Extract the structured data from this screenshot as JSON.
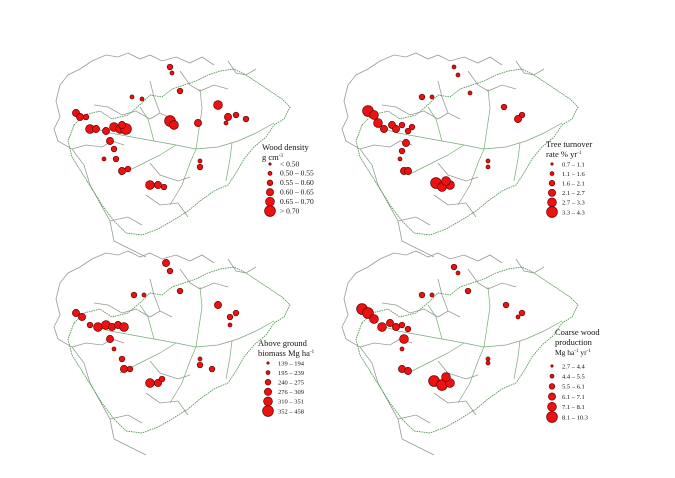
{
  "colors": {
    "site_fill": "#ee1111",
    "site_stroke": "#660000",
    "basin_outline": "#5a9a5a",
    "country_borders": "#9a9a9a"
  },
  "panels": [
    {
      "id": "wood-density",
      "legend": {
        "title_line1": "Wood density",
        "title_line2": "g cm",
        "title_line2_sup": "-3",
        "classes": [
          "< 0.50",
          "0.50 – 0.55",
          "0.55 – 0.60",
          "0.60 – 0.65",
          "0.65 – 0.70",
          "> 0.70"
        ]
      }
    },
    {
      "id": "tree-turnover",
      "legend": {
        "title_line1": "Tree turnover",
        "title_line2": "rate  % yr",
        "title_line2_sup": "-1",
        "classes": [
          "0.7 – 1.1",
          "1.1 – 1.6",
          "1.6 – 2.1",
          "2.1 – 2.7",
          "2.7 – 3.3",
          "3.3 – 4.3"
        ]
      }
    },
    {
      "id": "above-ground-biomass",
      "legend": {
        "title_line1": "Above ground",
        "title_line2": "biomass Mg ha",
        "title_line2_sup": "-1",
        "classes": [
          "139 – 194",
          "195 – 239",
          "240 – 275",
          "276 – 309",
          "310 – 351",
          "352 – 458"
        ]
      }
    },
    {
      "id": "coarse-wood-production",
      "legend": {
        "title_line1": "Coarse wood",
        "title_line2": "production",
        "title_line3": "Mg ha",
        "title_line3_sup": "-1",
        "title_line3_b": " yr",
        "title_line3_sup2": "-1",
        "classes": [
          "2.7 – 4.4",
          "4.4 – 5.5",
          "5.5 – 6.1",
          "6.1 – 7.1",
          "7.1 – 8.1",
          "8.1 – 10.3"
        ]
      }
    }
  ]
}
